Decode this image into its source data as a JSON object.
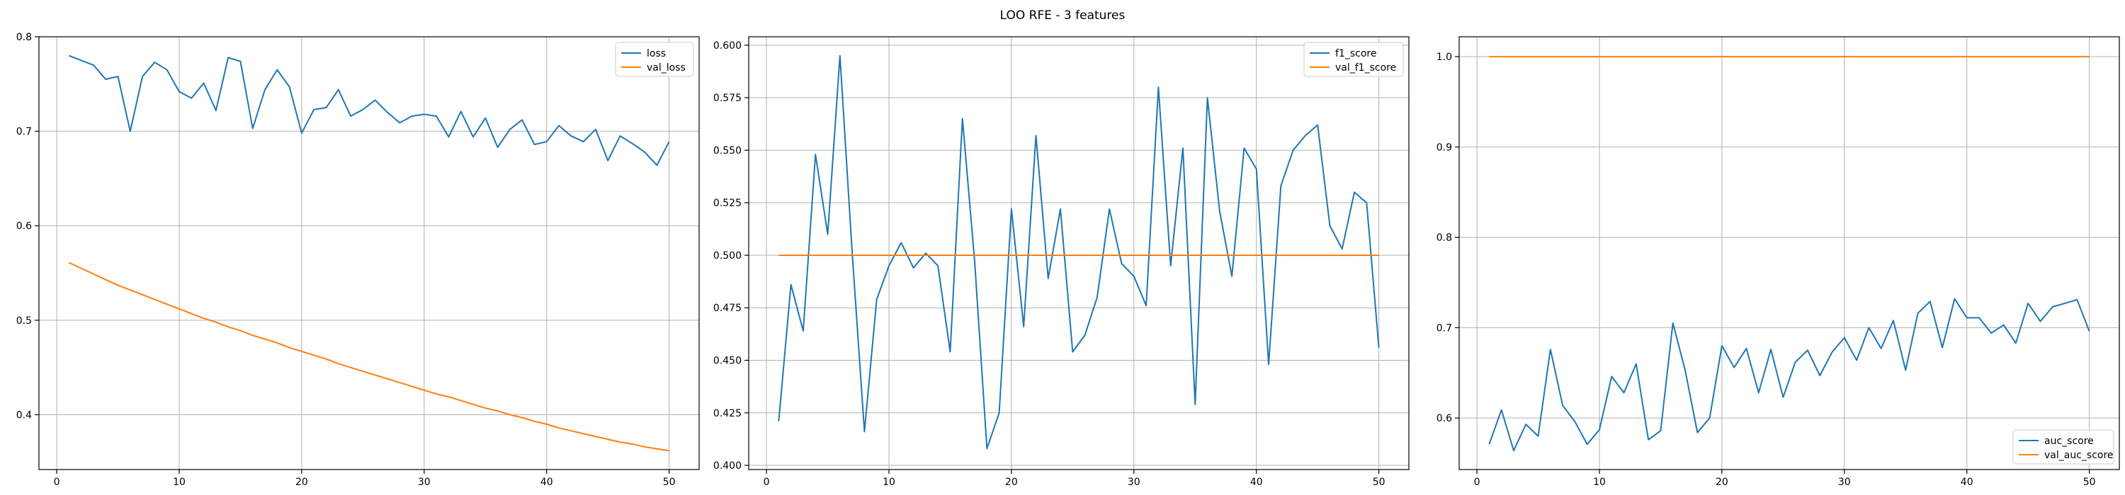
{
  "figure": {
    "title": "LOO RFE - 3 features"
  },
  "colors": {
    "train": "#1f77b4",
    "val": "#ff7f0e"
  },
  "chart_data": [
    {
      "type": "line",
      "title": "",
      "xlabel": "",
      "ylabel": "",
      "xlim": [
        -1.45,
        52.45
      ],
      "ylim": [
        0.342,
        0.8
      ],
      "xticks": [
        0,
        10,
        20,
        30,
        40,
        50
      ],
      "yticks": [
        0.4,
        0.5,
        0.6,
        0.7,
        0.8
      ],
      "ytick_labels": [
        "0.4",
        "0.5",
        "0.6",
        "0.7",
        "0.8"
      ],
      "grid": true,
      "legend": "top-right",
      "series": [
        {
          "name": "loss",
          "x": [
            1,
            2,
            3,
            4,
            5,
            6,
            7,
            8,
            9,
            10,
            11,
            12,
            13,
            14,
            15,
            16,
            17,
            18,
            19,
            20,
            21,
            22,
            23,
            24,
            25,
            26,
            27,
            28,
            29,
            30,
            31,
            32,
            33,
            34,
            35,
            36,
            37,
            38,
            39,
            40,
            41,
            42,
            43,
            44,
            45,
            46,
            47,
            48,
            49,
            50
          ],
          "values": [
            0.78,
            0.775,
            0.77,
            0.755,
            0.758,
            0.7,
            0.758,
            0.773,
            0.765,
            0.742,
            0.735,
            0.751,
            0.722,
            0.778,
            0.774,
            0.703,
            0.744,
            0.765,
            0.747,
            0.698,
            0.723,
            0.725,
            0.744,
            0.716,
            0.723,
            0.733,
            0.72,
            0.709,
            0.716,
            0.718,
            0.716,
            0.694,
            0.721,
            0.694,
            0.714,
            0.683,
            0.702,
            0.712,
            0.686,
            0.689,
            0.706,
            0.695,
            0.689,
            0.702,
            0.669,
            0.695,
            0.687,
            0.678,
            0.664,
            0.689
          ]
        },
        {
          "name": "val_loss",
          "x": [
            1,
            2,
            3,
            4,
            5,
            6,
            7,
            8,
            9,
            10,
            11,
            12,
            13,
            14,
            15,
            16,
            17,
            18,
            19,
            20,
            21,
            22,
            23,
            24,
            25,
            26,
            27,
            28,
            29,
            30,
            31,
            32,
            33,
            34,
            35,
            36,
            37,
            38,
            39,
            40,
            41,
            42,
            43,
            44,
            45,
            46,
            47,
            48,
            49,
            50
          ],
          "values": [
            0.561,
            0.555,
            0.549,
            0.543,
            0.537,
            0.532,
            0.527,
            0.522,
            0.517,
            0.512,
            0.507,
            0.502,
            0.498,
            0.493,
            0.489,
            0.484,
            0.48,
            0.476,
            0.471,
            0.467,
            0.463,
            0.459,
            0.454,
            0.45,
            0.446,
            0.442,
            0.438,
            0.434,
            0.43,
            0.426,
            0.422,
            0.419,
            0.415,
            0.411,
            0.407,
            0.404,
            0.4,
            0.397,
            0.393,
            0.39,
            0.386,
            0.383,
            0.38,
            0.377,
            0.374,
            0.371,
            0.369,
            0.366,
            0.364,
            0.362
          ]
        }
      ]
    },
    {
      "type": "line",
      "title": "",
      "xlabel": "",
      "ylabel": "",
      "xlim": [
        -1.45,
        52.45
      ],
      "ylim": [
        0.398,
        0.604
      ],
      "xticks": [
        0,
        10,
        20,
        30,
        40,
        50
      ],
      "yticks": [
        0.4,
        0.425,
        0.45,
        0.475,
        0.5,
        0.525,
        0.55,
        0.575,
        0.6
      ],
      "ytick_labels": [
        "0.400",
        "0.425",
        "0.450",
        "0.475",
        "0.500",
        "0.525",
        "0.550",
        "0.575",
        "0.600"
      ],
      "grid": true,
      "legend": "top-right",
      "series": [
        {
          "name": "f1_score",
          "x": [
            1,
            2,
            3,
            4,
            5,
            6,
            7,
            8,
            9,
            10,
            11,
            12,
            13,
            14,
            15,
            16,
            17,
            18,
            19,
            20,
            21,
            22,
            23,
            24,
            25,
            26,
            27,
            28,
            29,
            30,
            31,
            32,
            33,
            34,
            35,
            36,
            37,
            38,
            39,
            40,
            41,
            42,
            43,
            44,
            45,
            46,
            47,
            48,
            49,
            50
          ],
          "values": [
            0.421,
            0.486,
            0.464,
            0.548,
            0.51,
            0.595,
            0.501,
            0.416,
            0.479,
            0.495,
            0.506,
            0.494,
            0.501,
            0.495,
            0.454,
            0.565,
            0.497,
            0.408,
            0.425,
            0.522,
            0.466,
            0.557,
            0.489,
            0.522,
            0.454,
            0.462,
            0.48,
            0.522,
            0.496,
            0.49,
            0.476,
            0.58,
            0.495,
            0.551,
            0.429,
            0.575,
            0.521,
            0.49,
            0.551,
            0.541,
            0.448,
            0.533,
            0.55,
            0.557,
            0.562,
            0.514,
            0.503,
            0.53,
            0.525,
            0.456
          ]
        },
        {
          "name": "val_f1_score",
          "x": [
            1,
            50
          ],
          "values": [
            0.5,
            0.5
          ]
        }
      ]
    },
    {
      "type": "line",
      "title": "",
      "xlabel": "",
      "ylabel": "",
      "xlim": [
        -1.45,
        52.45
      ],
      "ylim": [
        0.543,
        1.022
      ],
      "xticks": [
        0,
        10,
        20,
        30,
        40,
        50
      ],
      "yticks": [
        0.6,
        0.7,
        0.8,
        0.9,
        1.0
      ],
      "ytick_labels": [
        "0.6",
        "0.7",
        "0.8",
        "0.9",
        "1.0"
      ],
      "grid": true,
      "legend": "bottom-right",
      "series": [
        {
          "name": "auc_score",
          "x": [
            1,
            2,
            3,
            4,
            5,
            6,
            7,
            8,
            9,
            10,
            11,
            12,
            13,
            14,
            15,
            16,
            17,
            18,
            19,
            20,
            21,
            22,
            23,
            24,
            25,
            26,
            27,
            28,
            29,
            30,
            31,
            32,
            33,
            34,
            35,
            36,
            37,
            38,
            39,
            40,
            41,
            42,
            43,
            44,
            45,
            46,
            47,
            48,
            49,
            50
          ],
          "values": [
            0.571,
            0.609,
            0.564,
            0.593,
            0.58,
            0.676,
            0.614,
            0.596,
            0.571,
            0.587,
            0.646,
            0.628,
            0.66,
            0.576,
            0.586,
            0.705,
            0.653,
            0.584,
            0.6,
            0.68,
            0.656,
            0.677,
            0.628,
            0.676,
            0.623,
            0.662,
            0.675,
            0.647,
            0.673,
            0.689,
            0.664,
            0.7,
            0.677,
            0.708,
            0.653,
            0.716,
            0.729,
            0.678,
            0.732,
            0.711,
            0.711,
            0.694,
            0.703,
            0.683,
            0.727,
            0.707,
            0.723,
            0.727,
            0.731,
            0.696
          ]
        },
        {
          "name": "val_auc_score",
          "x": [
            1,
            50
          ],
          "values": [
            1.0,
            1.0
          ]
        }
      ]
    }
  ]
}
